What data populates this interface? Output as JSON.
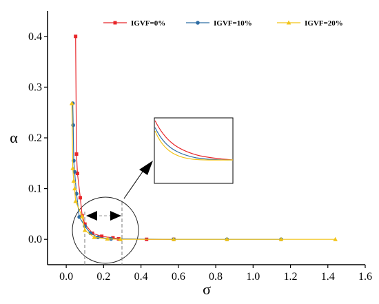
{
  "chart_data": {
    "type": "line",
    "xlabel": "σ",
    "ylabel": "α",
    "xlim": [
      -0.1,
      1.6
    ],
    "ylim": [
      -0.05,
      0.45
    ],
    "xticks": [
      "0.0",
      "0.2",
      "0.4",
      "0.6",
      "0.8",
      "1.0",
      "1.2",
      "1.4",
      "1.6"
    ],
    "xtick_values": [
      0,
      0.2,
      0.4,
      0.6,
      0.8,
      1.0,
      1.2,
      1.4,
      1.6
    ],
    "yticks": [
      "0.0",
      "0.1",
      "0.2",
      "0.3",
      "0.4"
    ],
    "ytick_values": [
      0,
      0.1,
      0.2,
      0.3,
      0.4
    ],
    "grid": false,
    "legend_position": "top",
    "series": [
      {
        "name": "IGVF=0%",
        "color": "#e8262a",
        "marker": "square",
        "points": [
          [
            0.05,
            0.4
          ],
          [
            0.055,
            0.168
          ],
          [
            0.06,
            0.13
          ],
          [
            0.075,
            0.082
          ],
          [
            0.085,
            0.047
          ],
          [
            0.1,
            0.03
          ],
          [
            0.14,
            0.012
          ],
          [
            0.19,
            0.006
          ],
          [
            0.25,
            0.003
          ],
          [
            0.28,
            0.001
          ],
          [
            0.43,
            0.0
          ],
          [
            0.575,
            0.0
          ]
        ]
      },
      {
        "name": "IGVF=10%",
        "color": "#2e6da4",
        "marker": "circle",
        "points": [
          [
            0.035,
            0.268
          ],
          [
            0.037,
            0.225
          ],
          [
            0.04,
            0.155
          ],
          [
            0.045,
            0.133
          ],
          [
            0.055,
            0.09
          ],
          [
            0.07,
            0.044
          ],
          [
            0.1,
            0.026
          ],
          [
            0.13,
            0.012
          ],
          [
            0.17,
            0.004
          ],
          [
            0.24,
            0.001
          ],
          [
            0.575,
            0.0
          ],
          [
            0.86,
            0.0
          ],
          [
            1.15,
            0.0
          ]
        ]
      },
      {
        "name": "IGVF=20%",
        "color": "#f2c418",
        "marker": "triangle",
        "points": [
          [
            0.03,
            0.268
          ],
          [
            0.035,
            0.14
          ],
          [
            0.04,
            0.115
          ],
          [
            0.045,
            0.1
          ],
          [
            0.05,
            0.075
          ],
          [
            0.085,
            0.045
          ],
          [
            0.1,
            0.018
          ],
          [
            0.15,
            0.004
          ],
          [
            0.22,
            0.001
          ],
          [
            0.29,
            0.0
          ],
          [
            0.575,
            0.0
          ],
          [
            0.86,
            0.0
          ],
          [
            1.15,
            0.0
          ],
          [
            1.44,
            0.0
          ]
        ]
      }
    ],
    "annotations": {
      "zoom_circle_center": [
        0.21,
        0.02
      ],
      "range_arrow": [
        0.1,
        0.28
      ],
      "inset_description": "magnified view of the curves near the knee"
    }
  }
}
